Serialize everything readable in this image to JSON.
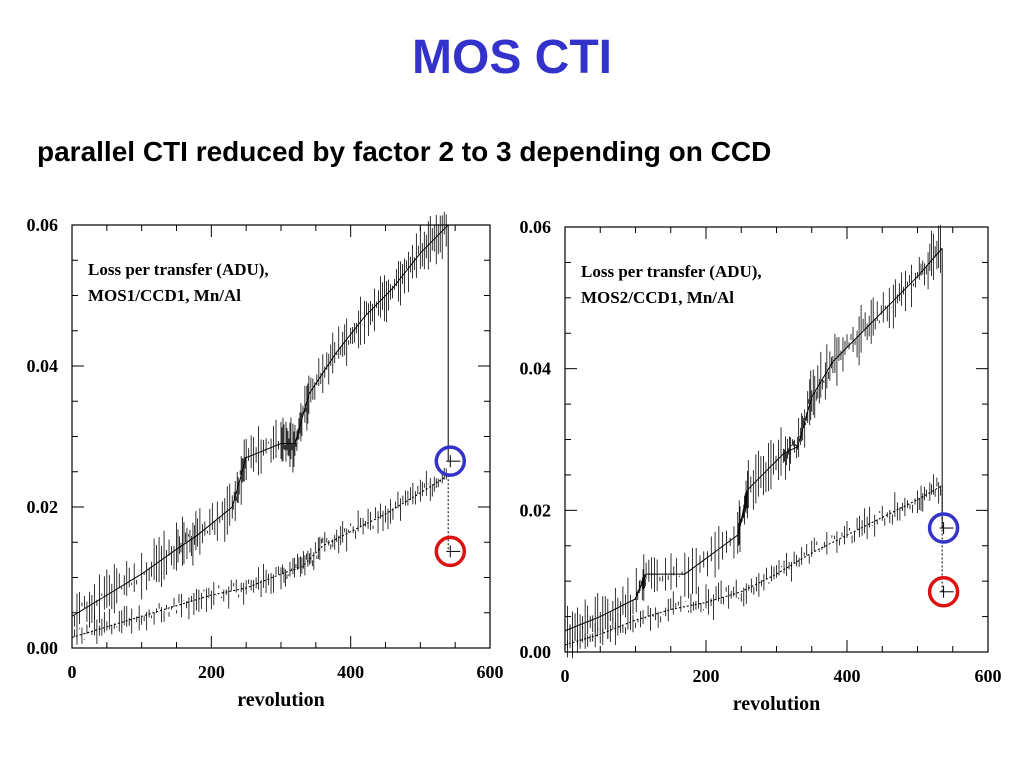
{
  "page": {
    "title": "MOS CTI",
    "subtitle": "parallel CTI reduced by factor 2 to 3 depending on CCD"
  },
  "colors": {
    "marker_blue": "#3333cc",
    "marker_red": "#dd1111",
    "axis": "#000000"
  },
  "chart_data": [
    {
      "type": "line",
      "annotation": [
        "Loss per transfer (ADU),",
        "MOS1/CCD1, Mn/Al"
      ],
      "xlabel": "revolution",
      "ylabel": "",
      "xlim": [
        0,
        600
      ],
      "ylim": [
        0,
        0.06
      ],
      "xticks": [
        0,
        200,
        400,
        600
      ],
      "xtick_labels": [
        "0",
        "200",
        "400",
        "600"
      ],
      "yticks": [
        0,
        0.02,
        0.04,
        0.06
      ],
      "ytick_labels": [
        "0.00",
        "0.02",
        "0.04",
        "0.06"
      ],
      "series": [
        {
          "style": "solid",
          "x": [
            0,
            50,
            100,
            150,
            180,
            230,
            250,
            300,
            320,
            340,
            380,
            420,
            460,
            500,
            540
          ],
          "y": [
            0.0045,
            0.0075,
            0.0105,
            0.014,
            0.016,
            0.02,
            0.027,
            0.029,
            0.029,
            0.036,
            0.042,
            0.047,
            0.051,
            0.056,
            0.06
          ]
        },
        {
          "style": "dotted",
          "x": [
            0,
            50,
            100,
            150,
            200,
            250,
            300,
            330,
            360,
            400,
            450,
            500,
            540
          ],
          "y": [
            0.0015,
            0.003,
            0.0045,
            0.006,
            0.0075,
            0.0085,
            0.0105,
            0.0115,
            0.0145,
            0.0165,
            0.019,
            0.022,
            0.0245
          ]
        }
      ],
      "markers": [
        {
          "x": 543,
          "y": 0.0265,
          "color": "blue"
        },
        {
          "x": 543,
          "y": 0.0137,
          "color": "red"
        }
      ]
    },
    {
      "type": "line",
      "annotation": [
        "Loss per transfer (ADU),",
        "MOS2/CCD1, Mn/Al"
      ],
      "xlabel": "revolution",
      "ylabel": "",
      "xlim": [
        0,
        600
      ],
      "ylim": [
        0,
        0.06
      ],
      "xticks": [
        0,
        200,
        400,
        600
      ],
      "xtick_labels": [
        "0",
        "200",
        "400",
        "600"
      ],
      "yticks": [
        0,
        0.02,
        0.04,
        0.06
      ],
      "ytick_labels": [
        "0.00",
        "0.02",
        "0.04",
        "0.06"
      ],
      "series": [
        {
          "style": "solid",
          "x": [
            0,
            50,
            100,
            115,
            170,
            245,
            260,
            310,
            330,
            350,
            380,
            420,
            460,
            500,
            535
          ],
          "y": [
            0.003,
            0.005,
            0.0075,
            0.011,
            0.011,
            0.0165,
            0.023,
            0.028,
            0.029,
            0.036,
            0.041,
            0.045,
            0.049,
            0.053,
            0.057
          ]
        },
        {
          "style": "dotted",
          "x": [
            0,
            50,
            100,
            150,
            200,
            250,
            300,
            350,
            400,
            450,
            500,
            535
          ],
          "y": [
            0.001,
            0.0025,
            0.0045,
            0.006,
            0.007,
            0.0085,
            0.011,
            0.014,
            0.0165,
            0.019,
            0.0215,
            0.0235
          ]
        }
      ],
      "markers": [
        {
          "x": 537,
          "y": 0.0175,
          "color": "blue"
        },
        {
          "x": 537,
          "y": 0.0085,
          "color": "red"
        }
      ]
    }
  ]
}
